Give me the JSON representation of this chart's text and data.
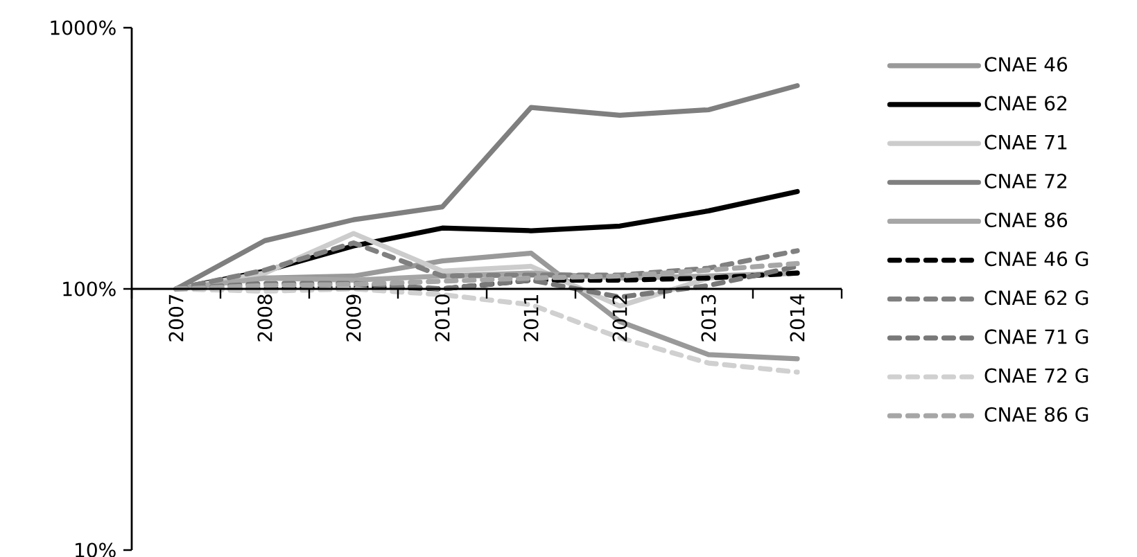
{
  "chart_data": {
    "type": "line",
    "categories": [
      "2007",
      "2008",
      "2009",
      "2010",
      "2011",
      "2012",
      "2013",
      "2014"
    ],
    "ylim": [
      10,
      1000
    ],
    "log": "y",
    "grid": false,
    "legend": "right",
    "marker": "none",
    "yticks": [
      {
        "value": 10,
        "label": "10%"
      },
      {
        "value": 100,
        "label": "100%"
      },
      {
        "value": 1000,
        "label": "1000%"
      }
    ],
    "series": [
      {
        "name": "CNAE 46",
        "color": "#999999",
        "line_style": "solid",
        "values": [
          100,
          110,
          112,
          128,
          137,
          75,
          56,
          54
        ]
      },
      {
        "name": "CNAE 62",
        "color": "#000000",
        "line_style": "solid",
        "values": [
          100,
          117,
          146,
          171,
          167,
          174,
          199,
          236
        ]
      },
      {
        "name": "CNAE 71",
        "color": "#cccccc",
        "line_style": "solid",
        "values": [
          100,
          115,
          163,
          117,
          122,
          86,
          110,
          115
        ]
      },
      {
        "name": "CNAE 72",
        "color": "#7f7f7f",
        "line_style": "solid",
        "values": [
          100,
          153,
          184,
          206,
          495,
          462,
          485,
          600
        ]
      },
      {
        "name": "CNAE 86",
        "color": "#a6a6a6",
        "line_style": "solid",
        "values": [
          100,
          110,
          108,
          112,
          115,
          110,
          112,
          115
        ]
      },
      {
        "name": "CNAE 46 G",
        "color": "#000000",
        "line_style": "dashed",
        "values": [
          100,
          100,
          102,
          100,
          108,
          108,
          110,
          115
        ]
      },
      {
        "name": "CNAE 62 G",
        "color": "#808080",
        "line_style": "dashed",
        "values": [
          100,
          118,
          150,
          112,
          113,
          113,
          120,
          140
        ]
      },
      {
        "name": "CNAE 71 G",
        "color": "#787878",
        "line_style": "dashed",
        "values": [
          100,
          105,
          105,
          100,
          108,
          93,
          103,
          122
        ]
      },
      {
        "name": "CNAE 72 G",
        "color": "#d0d0d0",
        "line_style": "dashed",
        "values": [
          100,
          98,
          100,
          95,
          87,
          65,
          52,
          48
        ]
      },
      {
        "name": "CNAE 86 G",
        "color": "#a6a6a6",
        "line_style": "dashed",
        "values": [
          100,
          103,
          104,
          107,
          110,
          112,
          118,
          125
        ]
      }
    ]
  }
}
